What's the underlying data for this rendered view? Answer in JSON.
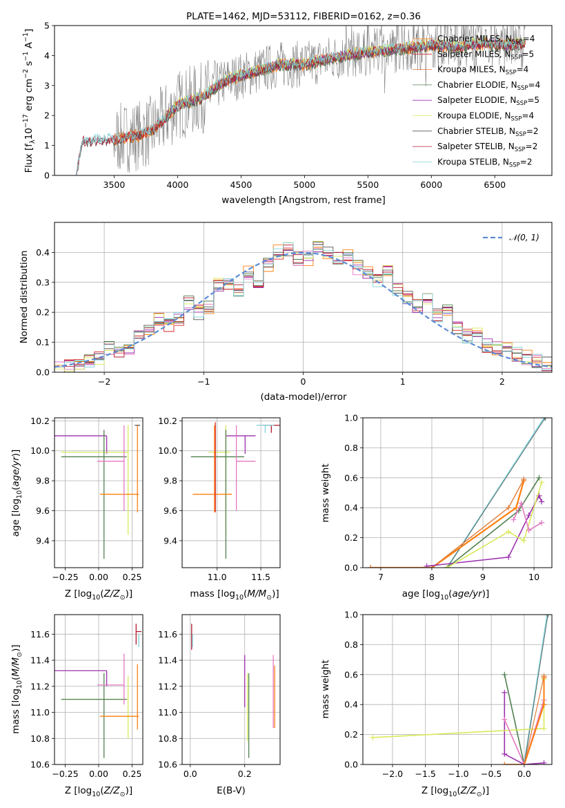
{
  "colors": {
    "chabrier_miles": "#ff7f0e",
    "salpeter_miles": "#d62728",
    "kroupa_miles": "#e07b39",
    "chabrier_elodie": "#4f7f4f",
    "salpeter_elodie": "#9b2fae",
    "kroupa_elodie": "#d9e95b",
    "chabrier_stelib": "#555555",
    "salpeter_stelib": "#b2182b",
    "kroupa_stelib": "#7fd1d8",
    "pink": "#e377c2",
    "data": "#808080",
    "gauss": "#5b8bd6"
  },
  "chart_data": [
    {
      "id": "spectrum",
      "type": "line",
      "title": "PLATE=1462, MJD=53112, FIBERID=0162, z=0.36",
      "xlabel": "wavelength [Angstrom, rest frame]",
      "ylabel": "Flux [f_λ 10^-17 erg cm^-2 s^-1 A^-1]",
      "xlim": [
        3030,
        6950
      ],
      "ylim": [
        0,
        5
      ],
      "xticks": [
        "3500",
        "4000",
        "4500",
        "5000",
        "5500",
        "6000",
        "6500"
      ],
      "yticks": [
        "0",
        "1",
        "2",
        "3",
        "4",
        "5"
      ],
      "legend_position": "right",
      "legend": [
        {
          "label": "Chabrier MILES, N",
          "sub": "SSP",
          "tail": "=4"
        },
        {
          "label": "Salpeter MILES, N",
          "sub": "SSP",
          "tail": "=5"
        },
        {
          "label": "Kroupa MILES, N",
          "sub": "SSP",
          "tail": "=4"
        },
        {
          "label": "Chabrier ELODIE, N",
          "sub": "SSP",
          "tail": "=4"
        },
        {
          "label": "Salpeter ELODIE, N",
          "sub": "SSP",
          "tail": "=5"
        },
        {
          "label": "Kroupa ELODIE, N",
          "sub": "SSP",
          "tail": "=4"
        },
        {
          "label": "Chabrier STELIB, N",
          "sub": "SSP",
          "tail": "=2"
        },
        {
          "label": "Salpeter STELIB, N",
          "sub": "SSP",
          "tail": "=2"
        },
        {
          "label": "Kroupa STELIB, N",
          "sub": "SSP",
          "tail": "=2"
        }
      ],
      "model_trend": {
        "x": [
          3200,
          3250,
          3500,
          3700,
          3800,
          3900,
          4000,
          4200,
          4300,
          4400,
          4600,
          4800,
          5000,
          5200,
          5400,
          5600,
          5800,
          6000,
          6200,
          6400,
          6600,
          6740
        ],
        "y": [
          0.0,
          1.15,
          1.2,
          1.35,
          1.5,
          1.9,
          2.35,
          2.6,
          2.95,
          3.2,
          3.45,
          3.7,
          3.7,
          3.9,
          4.05,
          4.15,
          4.25,
          4.35,
          4.3,
          4.4,
          4.35,
          4.4
        ]
      }
    },
    {
      "id": "residuals",
      "type": "line",
      "xlabel": "(data-model)/error",
      "ylabel": "Normed distribution",
      "xlim": [
        -2.5,
        2.5
      ],
      "ylim": [
        0,
        0.5
      ],
      "xticks": [
        "−2",
        "−1",
        "0",
        "1",
        "2"
      ],
      "yticks": [
        "0.0",
        "0.1",
        "0.2",
        "0.3",
        "0.4"
      ],
      "legend": "𝒩(0, 1)",
      "legend_position": "top-right",
      "bins_centers": [
        -2.45,
        -2.35,
        -2.25,
        -2.15,
        -2.05,
        -1.95,
        -1.85,
        -1.75,
        -1.65,
        -1.55,
        -1.45,
        -1.35,
        -1.25,
        -1.15,
        -1.05,
        -0.95,
        -0.85,
        -0.75,
        -0.65,
        -0.55,
        -0.45,
        -0.35,
        -0.25,
        -0.15,
        -0.05,
        0.05,
        0.15,
        0.25,
        0.35,
        0.45,
        0.55,
        0.65,
        0.75,
        0.85,
        0.95,
        1.05,
        1.15,
        1.25,
        1.35,
        1.45,
        1.55,
        1.65,
        1.75,
        1.85,
        1.95,
        2.05,
        2.15,
        2.25,
        2.35,
        2.45
      ],
      "hist_mean": [
        0.02,
        0.02,
        0.03,
        0.04,
        0.05,
        0.08,
        0.07,
        0.08,
        0.12,
        0.14,
        0.18,
        0.16,
        0.18,
        0.23,
        0.2,
        0.22,
        0.29,
        0.3,
        0.27,
        0.33,
        0.3,
        0.36,
        0.4,
        0.41,
        0.38,
        0.38,
        0.42,
        0.4,
        0.38,
        0.39,
        0.35,
        0.33,
        0.31,
        0.34,
        0.28,
        0.25,
        0.22,
        0.24,
        0.19,
        0.2,
        0.15,
        0.12,
        0.13,
        0.09,
        0.08,
        0.08,
        0.06,
        0.05,
        0.04,
        0.03
      ]
    },
    {
      "id": "age_vs_Z",
      "type": "scatter",
      "xlabel": "Z [log10(Z/Z⊙)]",
      "ylabel": "age  [log10(age/yr)]",
      "xlim": [
        -0.33,
        0.33
      ],
      "ylim": [
        9.22,
        10.22
      ],
      "xticks": [
        "−0.25",
        "0.00",
        "0.25"
      ],
      "yticks": [
        "9.4",
        "9.6",
        "9.8",
        "10.0",
        "10.2"
      ]
    },
    {
      "id": "age_vs_mass",
      "type": "scatter",
      "xlabel": "mass [log10(M/M⊙)]",
      "ylabel": "",
      "xlim": [
        10.6,
        11.72
      ],
      "ylim": [
        9.22,
        10.22
      ],
      "xticks": [
        "11.0",
        "11.5"
      ],
      "yticks": [
        "9.4",
        "9.6",
        "9.8",
        "10.0",
        "10.2"
      ]
    },
    {
      "id": "weight_vs_age",
      "type": "line",
      "xlabel": "age  [log10(age/yr)]",
      "ylabel": "mass weight",
      "xlim": [
        6.65,
        10.35
      ],
      "ylim": [
        0,
        1
      ],
      "xticks": [
        "7",
        "8",
        "9",
        "10"
      ],
      "yticks": [
        "0.0",
        "0.2",
        "0.4",
        "0.6",
        "0.8",
        "1.0"
      ]
    },
    {
      "id": "mass_vs_Z",
      "type": "scatter",
      "xlabel": "Z [log10(Z/Z⊙)]",
      "ylabel": "mass [log10(M/M⊙)]",
      "xlim": [
        -0.33,
        0.33
      ],
      "ylim": [
        10.6,
        11.75
      ],
      "xticks": [
        "−0.25",
        "0.00",
        "0.25"
      ],
      "yticks": [
        "10.6",
        "10.8",
        "11.0",
        "11.2",
        "11.4",
        "11.6"
      ]
    },
    {
      "id": "mass_vs_ebv",
      "type": "scatter",
      "xlabel": "E(B-V)",
      "ylabel": "",
      "xlim": [
        -0.03,
        0.33
      ],
      "ylim": [
        10.6,
        11.75
      ],
      "xticks": [
        "0.0",
        "0.2"
      ],
      "yticks": [
        "10.6",
        "10.8",
        "11.0",
        "11.2",
        "11.4",
        "11.6"
      ]
    },
    {
      "id": "weight_vs_Z",
      "type": "line",
      "xlabel": "Z [log10(Z/Z⊙)]",
      "ylabel": "mass weight",
      "xlim": [
        -2.45,
        0.42
      ],
      "ylim": [
        0,
        1
      ],
      "xticks": [
        "−2.0",
        "−1.5",
        "−1.0",
        "−0.5",
        "0.0"
      ],
      "yticks": [
        "0.0",
        "0.2",
        "0.4",
        "0.6",
        "0.8",
        "1.0"
      ]
    }
  ]
}
